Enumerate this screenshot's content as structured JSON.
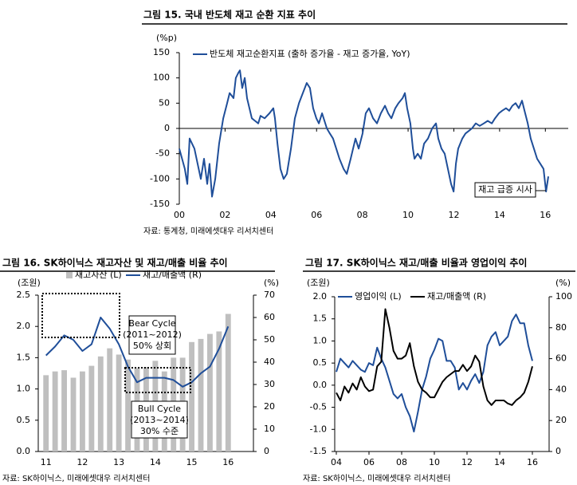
{
  "chart_data": [
    {
      "type": "line",
      "title": "그림 15. 국내 반도체 재고 순환 지표 추이",
      "y_label": "(%p)",
      "source": "자료: 통계청, 미래에셋대우 리서치센터",
      "x": [
        2000,
        2000.24,
        2000.35,
        2000.45,
        2000.66,
        2000.8,
        2000.94,
        2001.08,
        2001.22,
        2001.32,
        2001.43,
        2001.57,
        2001.74,
        2001.92,
        2002.09,
        2002.2,
        2002.37,
        2002.47,
        2002.58,
        2002.65,
        2002.75,
        2002.86,
        2002.96,
        2003.17,
        2003.31,
        2003.45,
        2003.55,
        2003.73,
        2003.94,
        2004.11,
        2004.18,
        2004.29,
        2004.42,
        2004.56,
        2004.7,
        2004.88,
        2005.05,
        2005.23,
        2005.4,
        2005.57,
        2005.71,
        2005.85,
        2005.99,
        2006.1,
        2006.24,
        2006.45,
        2006.58,
        2006.72,
        2006.86,
        2007,
        2007.18,
        2007.32,
        2007.49,
        2007.7,
        2007.84,
        2008.01,
        2008.15,
        2008.29,
        2008.47,
        2008.64,
        2008.81,
        2008.99,
        2009.13,
        2009.27,
        2009.44,
        2009.58,
        2009.76,
        2009.86,
        2009.96,
        2010.1,
        2010.21,
        2010.28,
        2010.42,
        2010.56,
        2010.7,
        2010.87,
        2011.05,
        2011.22,
        2011.32,
        2011.46,
        2011.6,
        2011.74,
        2011.88,
        2011.99,
        2012.09,
        2012.19,
        2012.37,
        2012.51,
        2012.65,
        2012.79,
        2012.96,
        2013.13,
        2013.31,
        2013.48,
        2013.66,
        2013.8,
        2013.97,
        2014.11,
        2014.28,
        2014.42,
        2014.56,
        2014.7,
        2014.84,
        2014.98,
        2015.09,
        2015.23,
        2015.36,
        2015.5,
        2015.64,
        2015.78,
        2015.92,
        2016.03,
        2016.13
      ],
      "series": [
        {
          "name": "반도체 재고순환지표 (출하 증가율 - 재고 증가율, YoY)",
          "type": "line",
          "color": "#1f4e99",
          "values": [
            -40,
            -80,
            -110,
            -20,
            -40,
            -70,
            -100,
            -60,
            -110,
            -70,
            -135,
            -100,
            -30,
            20,
            50,
            70,
            60,
            100,
            110,
            115,
            80,
            100,
            60,
            20,
            15,
            10,
            25,
            20,
            30,
            40,
            20,
            -30,
            -80,
            -100,
            -90,
            -40,
            20,
            50,
            70,
            90,
            80,
            40,
            20,
            10,
            30,
            0,
            -10,
            -20,
            -40,
            -60,
            -80,
            -90,
            -60,
            -20,
            -40,
            -10,
            30,
            40,
            20,
            10,
            30,
            45,
            30,
            20,
            40,
            50,
            60,
            70,
            40,
            10,
            -40,
            -60,
            -50,
            -60,
            -30,
            -20,
            0,
            10,
            -20,
            -40,
            -50,
            -80,
            -110,
            -125,
            -70,
            -40,
            -20,
            -10,
            -5,
            0,
            10,
            5,
            10,
            15,
            10,
            20,
            30,
            35,
            40,
            35,
            45,
            50,
            40,
            55,
            35,
            10,
            -20,
            -40,
            -60,
            -70,
            -80,
            -125,
            -95
          ]
        }
      ],
      "xlim": [
        2000,
        2017
      ],
      "xticks": [
        {
          "value": 2000,
          "label": "00"
        },
        {
          "value": 2002,
          "label": "02"
        },
        {
          "value": 2004,
          "label": "04"
        },
        {
          "value": 2006,
          "label": "06"
        },
        {
          "value": 2008,
          "label": "08"
        },
        {
          "value": 2010,
          "label": "10"
        },
        {
          "value": 2012,
          "label": "12"
        },
        {
          "value": 2014,
          "label": "14"
        },
        {
          "value": 2016,
          "label": "16"
        }
      ],
      "ylim": [
        -150,
        150
      ],
      "yticks": [
        -150,
        -100,
        -50,
        0,
        50,
        100,
        150
      ],
      "annotations": [
        {
          "lines": [
            "재고 급증 시사"
          ]
        }
      ]
    },
    {
      "type": "bar",
      "title": "그림 16. SK하이닉스 재고자산 및 재고/매출 비율 추이",
      "y_label": "(조원)",
      "y2_label": "(%)",
      "source": "자료: SK하이닉스, 미래에셋대우 리서치센터",
      "categories": [
        "11",
        null,
        null,
        null,
        "12",
        null,
        null,
        null,
        "13",
        null,
        null,
        null,
        "14",
        null,
        null,
        null,
        "15",
        null,
        null,
        null,
        "16"
      ],
      "series": [
        {
          "name": "재고자산 (L)",
          "type": "bar",
          "color": "#bfbfbf",
          "values": [
            1.22,
            1.28,
            1.3,
            1.18,
            1.28,
            1.37,
            1.52,
            1.65,
            1.55,
            1.47,
            1.33,
            1.35,
            1.45,
            1.28,
            1.5,
            1.5,
            1.75,
            1.8,
            1.88,
            1.92,
            2.2
          ]
        },
        {
          "name": "재고/매출액 (R)",
          "type": "line",
          "axis": "y2",
          "color": "#1f4e99",
          "values": [
            43,
            47,
            52,
            50,
            45,
            48,
            60,
            55,
            48,
            38,
            31,
            33,
            33,
            33,
            32,
            29,
            31,
            35,
            38,
            46,
            56
          ]
        }
      ],
      "ylim": [
        0,
        2.5
      ],
      "yticks": [
        {
          "value": 0,
          "label": "0.0"
        },
        0.5,
        {
          "value": 1,
          "label": "1.0"
        },
        1.5,
        {
          "value": 2,
          "label": "2.0"
        },
        2.5
      ],
      "y2lim": [
        0,
        70
      ],
      "y2ticks": [
        0,
        10,
        20,
        30,
        40,
        50,
        60,
        70
      ],
      "annotations": [
        {
          "lines": [
            "Bear Cycle",
            "(2011~2012)",
            "50% 상회"
          ]
        },
        {
          "lines": [
            "Bull Cycle",
            "(2013~2014)",
            "30% 수준"
          ]
        }
      ]
    },
    {
      "type": "line",
      "title": "그림 17. SK하이닉스 재고/매출 비율과 영업이익 추이",
      "y_label": "(조원)",
      "y2_label": "(%)",
      "source": "자료: SK하이닉스, 미래에셋대우 리서치센터",
      "x": [
        2004,
        2004.25,
        2004.5,
        2004.75,
        2005,
        2005.25,
        2005.5,
        2005.75,
        2006,
        2006.25,
        2006.5,
        2006.75,
        2007,
        2007.25,
        2007.5,
        2007.75,
        2008,
        2008.25,
        2008.5,
        2008.75,
        2009,
        2009.25,
        2009.5,
        2009.75,
        2010,
        2010.25,
        2010.5,
        2010.75,
        2011,
        2011.25,
        2011.5,
        2011.75,
        2012,
        2012.25,
        2012.5,
        2012.75,
        2013,
        2013.25,
        2013.5,
        2013.75,
        2014,
        2014.25,
        2014.5,
        2014.75,
        2015,
        2015.25,
        2015.5,
        2015.75,
        2016
      ],
      "series": [
        {
          "name": "영업이익 (L)",
          "type": "line",
          "color": "#1f4e99",
          "values": [
            0.3,
            0.6,
            0.5,
            0.4,
            0.55,
            0.45,
            0.35,
            0.3,
            0.5,
            0.45,
            0.85,
            0.6,
            0.4,
            0.1,
            -0.2,
            -0.3,
            -0.2,
            -0.5,
            -0.7,
            -1.05,
            -0.6,
            -0.1,
            0.2,
            0.6,
            0.8,
            1.05,
            1.0,
            0.55,
            0.55,
            0.4,
            -0.1,
            0.05,
            -0.1,
            0.1,
            0.25,
            0.05,
            0.3,
            0.9,
            1.1,
            1.2,
            0.9,
            1.0,
            1.1,
            1.45,
            1.6,
            1.4,
            1.4,
            0.9,
            0.55
          ]
        },
        {
          "name": "재고/매출액 (R)",
          "type": "line",
          "axis": "y2",
          "color": "#000000",
          "values": [
            38,
            33,
            42,
            38,
            44,
            40,
            48,
            42,
            39,
            40,
            55,
            58,
            92,
            80,
            65,
            60,
            60,
            62,
            70,
            55,
            45,
            40,
            38,
            35,
            35,
            40,
            45,
            48,
            50,
            52,
            52,
            56,
            52,
            55,
            62,
            58,
            42,
            33,
            30,
            33,
            33,
            33,
            31,
            30,
            33,
            35,
            38,
            45,
            55
          ]
        }
      ],
      "xlim": [
        2004,
        2017
      ],
      "xticks": [
        {
          "value": 2004,
          "label": "04"
        },
        {
          "value": 2006,
          "label": "06"
        },
        {
          "value": 2008,
          "label": "08"
        },
        {
          "value": 2010,
          "label": "10"
        },
        {
          "value": 2012,
          "label": "12"
        },
        {
          "value": 2014,
          "label": "14"
        },
        {
          "value": 2016,
          "label": "16"
        }
      ],
      "ylim": [
        -1.5,
        2
      ],
      "yticks": [
        -1.5,
        {
          "value": -1,
          "label": "-1.0"
        },
        -0.5,
        {
          "value": 0,
          "label": "0.0"
        },
        0.5,
        {
          "value": 1,
          "label": "1.0"
        },
        1.5,
        {
          "value": 2,
          "label": "2.0"
        }
      ],
      "y2lim": [
        0,
        100
      ],
      "y2ticks": [
        0,
        20,
        40,
        60,
        80,
        100
      ]
    }
  ]
}
